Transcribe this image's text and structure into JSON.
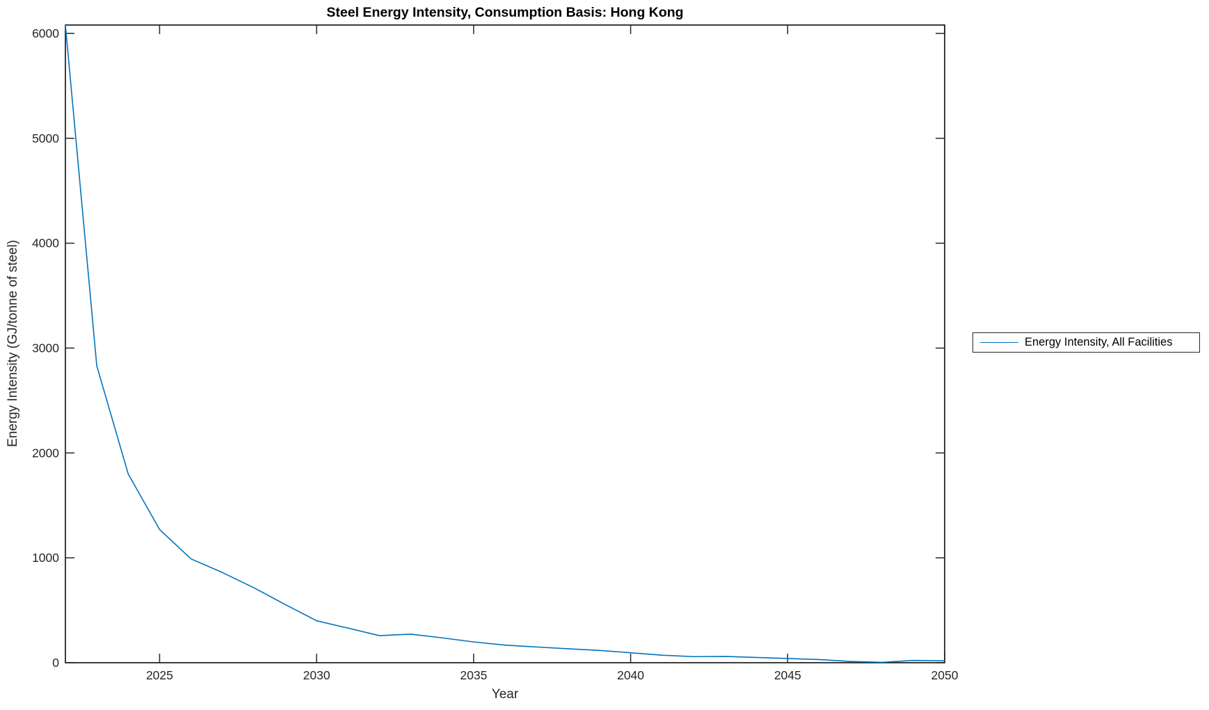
{
  "chart_data": {
    "type": "line",
    "title": "Steel Energy Intensity, Consumption Basis: Hong Kong",
    "xlabel": "Year",
    "ylabel": "Energy Intensity (GJ/tonne of steel)",
    "xlim": [
      2022,
      2050
    ],
    "ylim": [
      0,
      6080
    ],
    "xticks": [
      2025,
      2030,
      2035,
      2040,
      2045,
      2050
    ],
    "yticks": [
      0,
      1000,
      2000,
      3000,
      4000,
      5000,
      6000
    ],
    "grid": false,
    "legend": {
      "position": "right-outside",
      "border": true,
      "entries": [
        "Energy Intensity, All Facilities"
      ]
    },
    "series": [
      {
        "name": "Energy Intensity, All Facilities",
        "color": "#0072BD",
        "x": [
          2022,
          2023,
          2024,
          2025,
          2026,
          2027,
          2028,
          2029,
          2030,
          2031,
          2032,
          2033,
          2034,
          2035,
          2036,
          2037,
          2038,
          2039,
          2040,
          2041,
          2042,
          2043,
          2044,
          2045,
          2046,
          2047,
          2048,
          2049,
          2050
        ],
        "values": [
          6080,
          2830,
          1800,
          1270,
          990,
          860,
          715,
          555,
          400,
          330,
          258,
          272,
          237,
          198,
          168,
          150,
          133,
          117,
          95,
          72,
          58,
          60,
          50,
          40,
          30,
          12,
          4,
          22,
          18
        ]
      }
    ]
  },
  "style": {
    "axis_color": "#262626",
    "background_color": "#ffffff",
    "line_color": "#0072BD"
  }
}
